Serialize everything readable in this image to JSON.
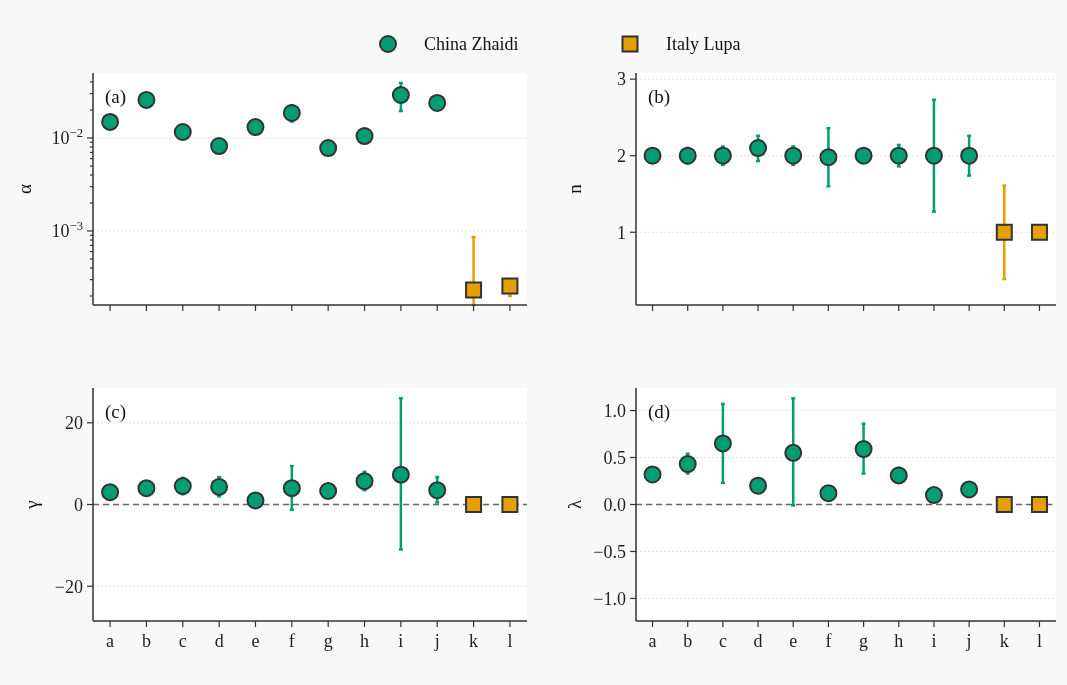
{
  "chart_data": [
    {
      "type": "scatter",
      "title": "(a)",
      "ylabel": "α",
      "log": "y",
      "categories": [
        null,
        null,
        null,
        null,
        null,
        null,
        null,
        null,
        null,
        null,
        null,
        null
      ],
      "ylim": [
        0.00016,
        0.05
      ],
      "yticks": [
        {
          "value": 0.0002,
          "label": null
        },
        {
          "value": 0.0003,
          "label": null
        },
        {
          "value": 0.0004,
          "label": null
        },
        {
          "value": 0.0005,
          "label": null
        },
        {
          "value": 0.0006,
          "label": null
        },
        {
          "value": 0.0007,
          "label": null
        },
        {
          "value": 0.0008,
          "label": null
        },
        {
          "value": 0.0009,
          "label": null
        },
        {
          "value": 0.001,
          "label": "10$^{−3}$"
        },
        {
          "value": 0.002,
          "label": null
        },
        {
          "value": 0.003,
          "label": null
        },
        {
          "value": 0.004,
          "label": null
        },
        {
          "value": 0.005,
          "label": null
        },
        {
          "value": 0.006,
          "label": null
        },
        {
          "value": 0.007,
          "label": null
        },
        {
          "value": 0.008,
          "label": null
        },
        {
          "value": 0.009,
          "label": null
        },
        {
          "value": 0.01,
          "label": "10$^{−2}$"
        },
        {
          "value": 0.02,
          "label": null
        },
        {
          "value": 0.03,
          "label": null
        },
        {
          "value": 0.04,
          "label": null
        }
      ],
      "grid": "y",
      "legend": "top",
      "tick_labels": "y",
      "series": [
        {
          "name": "China Zhaidi",
          "color": "#009e73",
          "marker": "circle",
          "values": [
            0.0149,
            0.0257,
            0.0116,
            0.0082,
            0.0131,
            0.0186,
            0.0078,
            0.0105,
            0.029,
            0.0238,
            null,
            null
          ],
          "errors": [
            null,
            null,
            null,
            null,
            null,
            [
              0.015,
              0.0225
            ],
            null,
            null,
            [
              0.0195,
              0.039
            ],
            null,
            null,
            null
          ]
        },
        {
          "name": "Italy Lupa",
          "color": "#e69f00",
          "marker": "square",
          "values": [
            null,
            null,
            null,
            null,
            null,
            null,
            null,
            null,
            null,
            null,
            0.000232,
            0.000256
          ],
          "errors": [
            null,
            null,
            null,
            null,
            null,
            null,
            null,
            null,
            null,
            null,
            [
              0.00016,
              0.00086
            ],
            [
              0.0002,
              0.000297
            ]
          ]
        }
      ]
    },
    {
      "type": "scatter",
      "title": "(b)",
      "ylabel": "n",
      "categories": [
        null,
        null,
        null,
        null,
        null,
        null,
        null,
        null,
        null,
        null,
        null,
        null
      ],
      "ylim": [
        0.05,
        3.08
      ],
      "yticks": [
        1,
        2,
        3
      ],
      "grid": "y",
      "tick_labels": "y",
      "series": [
        {
          "color": "#009e73",
          "marker": "circle",
          "values": [
            2,
            2,
            2,
            2.1,
            2,
            1.98,
            2,
            2,
            2,
            2,
            null,
            null
          ],
          "errors": [
            null,
            [
              1.9,
              2.1
            ],
            [
              1.88,
              2.12
            ],
            [
              1.93,
              2.26
            ],
            [
              1.88,
              2.12
            ],
            [
              1.6,
              2.36
            ],
            null,
            [
              1.86,
              2.14
            ],
            [
              1.27,
              2.73
            ],
            [
              1.74,
              2.26
            ],
            null,
            null
          ]
        },
        {
          "color": "#e69f00",
          "marker": "square",
          "values": [
            null,
            null,
            null,
            null,
            null,
            null,
            null,
            null,
            null,
            null,
            1,
            1
          ],
          "errors": [
            null,
            null,
            null,
            null,
            null,
            null,
            null,
            null,
            null,
            null,
            [
              0.39,
              1.61
            ],
            null
          ]
        }
      ]
    },
    {
      "type": "scatter",
      "title": "(c)",
      "ylabel": "γ",
      "categories": [
        "a",
        "b",
        "c",
        "d",
        "e",
        "f",
        "g",
        "h",
        "i",
        "j",
        "k",
        "l"
      ],
      "ylim": [
        -28.5,
        28.5
      ],
      "yticks": [
        {
          "value": -20,
          "label": "−20"
        },
        0,
        20
      ],
      "grid": "y",
      "ref_lines": [
        {
          "axis": "y",
          "value": 0,
          "color": "#666666",
          "line_style": "dashed"
        }
      ],
      "series": [
        {
          "color": "#009e73",
          "marker": "circle",
          "values": [
            3,
            4,
            4.5,
            4.3,
            1,
            4,
            3.3,
            5.7,
            7.3,
            3.5,
            null,
            null
          ],
          "errors": [
            null,
            null,
            [
              2.5,
              6.5
            ],
            [
              2,
              6.7
            ],
            null,
            [
              -1.3,
              9.4
            ],
            null,
            [
              3.5,
              8
            ],
            [
              -11,
              26
            ],
            [
              0.5,
              6.7
            ],
            null,
            null
          ]
        },
        {
          "color": "#e69f00",
          "marker": "square",
          "values": [
            null,
            null,
            null,
            null,
            null,
            null,
            null,
            null,
            null,
            null,
            0,
            0
          ]
        }
      ]
    },
    {
      "type": "scatter",
      "title": "(d)",
      "ylabel": "λ",
      "categories": [
        "a",
        "b",
        "c",
        "d",
        "e",
        "f",
        "g",
        "h",
        "i",
        "j",
        "k",
        "l"
      ],
      "ylim": [
        -1.24,
        1.24
      ],
      "yticks": [
        {
          "value": -1,
          "label": "−1.0"
        },
        {
          "value": -0.5,
          "label": "−0.5"
        },
        {
          "value": 0,
          "label": "0.0"
        },
        0.5,
        {
          "value": 1,
          "label": "1.0"
        }
      ],
      "grid": "y",
      "ref_lines": [
        {
          "axis": "y",
          "value": 0,
          "color": "#666666",
          "line_style": "dashed"
        }
      ],
      "series": [
        {
          "color": "#009e73",
          "marker": "circle",
          "values": [
            0.32,
            0.43,
            0.65,
            0.2,
            0.55,
            0.12,
            0.59,
            0.31,
            0.1,
            0.16,
            null,
            null
          ],
          "errors": [
            null,
            [
              0.33,
              0.54
            ],
            [
              0.23,
              1.07
            ],
            null,
            [
              -0.01,
              1.13
            ],
            null,
            [
              0.33,
              0.86
            ],
            [
              0.24,
              0.39
            ],
            null,
            null,
            null,
            null
          ]
        },
        {
          "color": "#e69f00",
          "marker": "square",
          "values": [
            null,
            null,
            null,
            null,
            null,
            null,
            null,
            null,
            null,
            null,
            0,
            0
          ]
        }
      ]
    }
  ]
}
